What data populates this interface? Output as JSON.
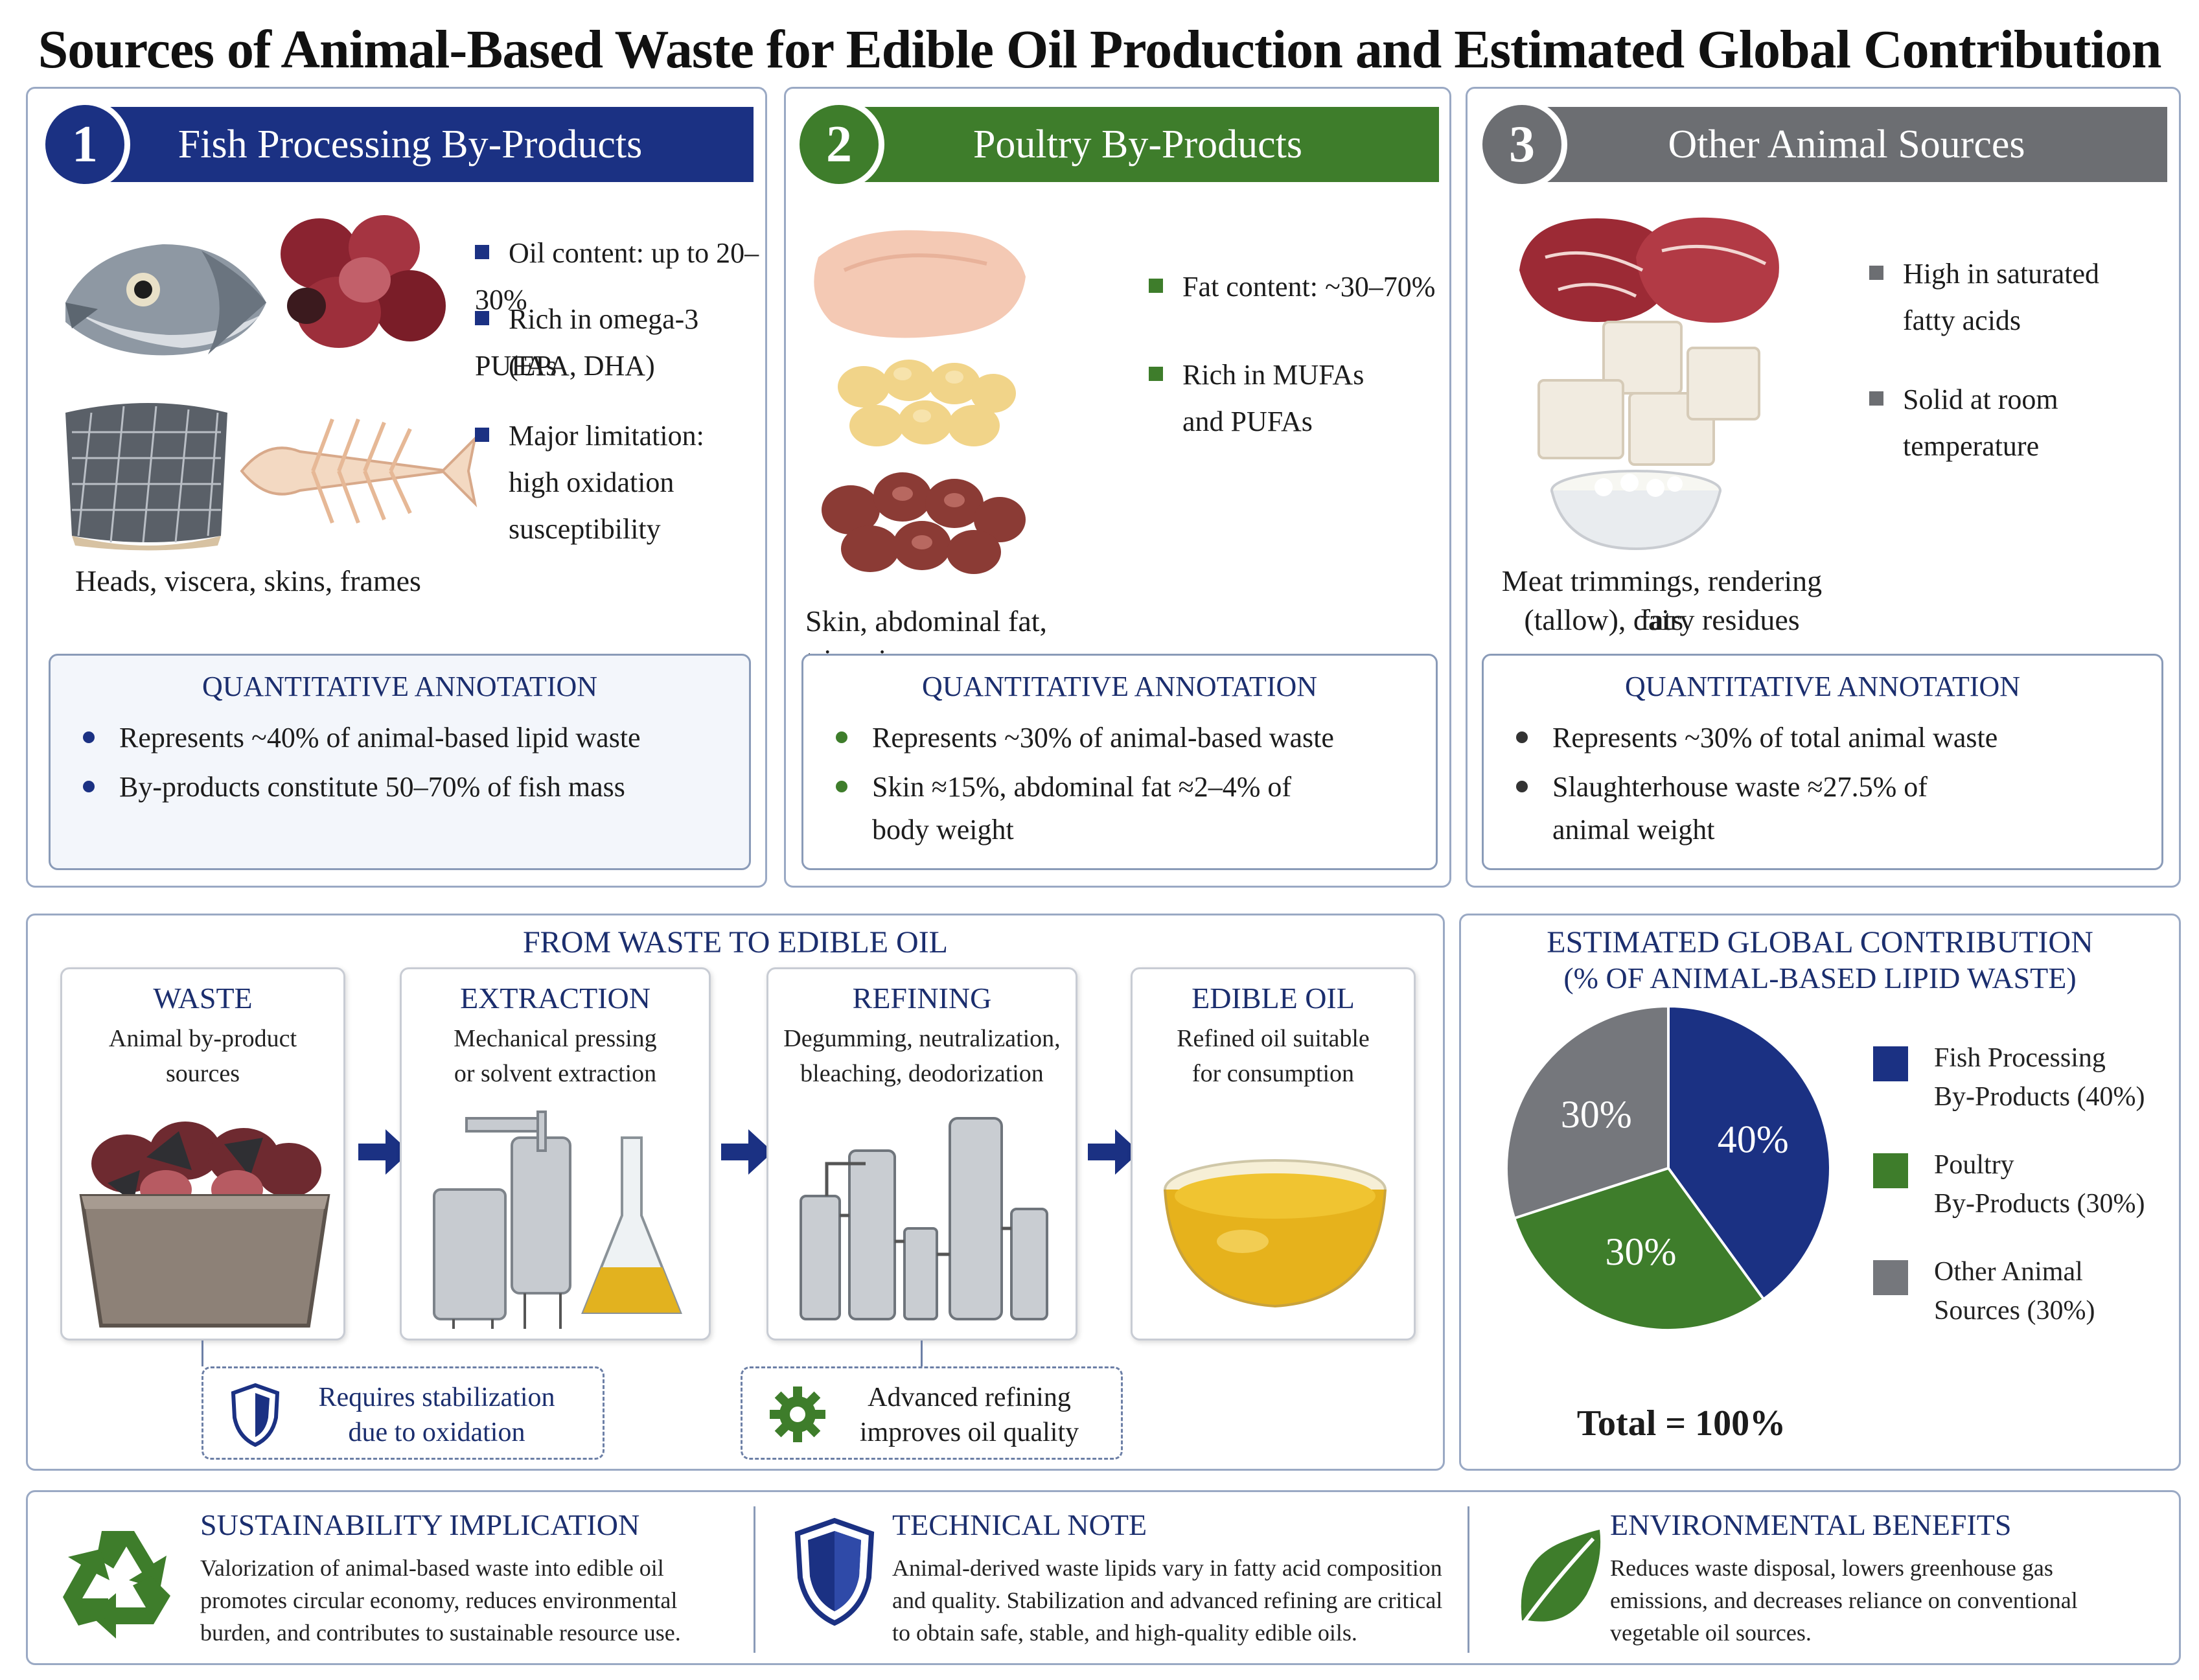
{
  "title": "Sources of Animal-Based Waste for Edible Oil Production and Estimated Global Contribution",
  "colors": {
    "blue": "#1b3183",
    "green": "#3e7d2b",
    "gray": "#6c6e72",
    "navy_text": "#1b2e6e"
  },
  "sections": [
    {
      "number": "1",
      "title": "Fish Processing By-Products",
      "bullets": [
        "Oil content: up to 20–30%",
        "Rich in omega-3 PUFAs",
        "(EPA, DHA)",
        "Major limitation:",
        "high oxidation susceptibility"
      ],
      "caption": "Heads, viscera, skins, frames",
      "qa_title": "QUANTITATIVE ANNOTATION",
      "qa_items": [
        "Represents ~40% of animal-based lipid waste",
        "By-products constitute 50–70% of fish mass"
      ]
    },
    {
      "number": "2",
      "title": "Poultry By-Products",
      "bullets": [
        "Fat content: ~30–70%",
        "Rich in MUFAs",
        "and PUFAs"
      ],
      "caption": "Skin, abdominal fat, trimmings",
      "qa_title": "QUANTITATIVE ANNOTATION",
      "qa_items": [
        "Represents ~30% of animal-based waste",
        "Skin ≈15%, abdominal fat ≈2–4% of",
        "body weight"
      ]
    },
    {
      "number": "3",
      "title": "Other Animal Sources",
      "bullets": [
        "High in saturated",
        "fatty acids",
        "Solid at room",
        "temperature"
      ],
      "caption_lines": [
        "Meat trimmings, rendering fats",
        "(tallow), dairy residues"
      ],
      "qa_title": "QUANTITATIVE ANNOTATION",
      "qa_items": [
        "Represents ~30% of total animal waste",
        "Slaughterhouse waste ≈27.5% of",
        "animal weight"
      ]
    }
  ],
  "process": {
    "title": "FROM WASTE TO EDIBLE OIL",
    "steps": [
      {
        "title": "WASTE",
        "desc": [
          "Animal by-product",
          "sources"
        ]
      },
      {
        "title": "EXTRACTION",
        "desc": [
          "Mechanical pressing",
          "or solvent extraction"
        ]
      },
      {
        "title": "REFINING",
        "desc": [
          "Degumming, neutralization,",
          "bleaching, deodorization"
        ]
      },
      {
        "title": "EDIBLE OIL",
        "desc": [
          "Refined oil suitable",
          "for consumption"
        ]
      }
    ],
    "notes": [
      {
        "icon": "shield-icon",
        "lines": [
          "Requires stabilization",
          "due to oxidation"
        ]
      },
      {
        "icon": "gear-icon",
        "lines": [
          "Advanced refining",
          "improves oil quality"
        ]
      }
    ]
  },
  "chart_data": {
    "type": "pie",
    "title": "ESTIMATED GLOBAL CONTRIBUTION",
    "subtitle": "(% OF ANIMAL-BASED LIPID WASTE)",
    "categories": [
      "Fish Processing By-Products (40%)",
      "Poultry By-Products (30%)",
      "Other Animal Sources (30%)"
    ],
    "values": [
      40,
      30,
      30
    ],
    "data_labels": [
      "40%",
      "30%",
      "30%"
    ],
    "colors": [
      "#1b3183",
      "#3e7d2b",
      "#75777c"
    ],
    "legend_lines": [
      [
        "Fish Processing",
        "By-Products (40%)"
      ],
      [
        "Poultry",
        "By-Products (30%)"
      ],
      [
        "Other Animal",
        "Sources (30%)"
      ]
    ],
    "legend_position": "right",
    "total_label": "Total = 100%"
  },
  "footer": [
    {
      "icon": "recycle-icon",
      "title": "SUSTAINABILITY IMPLICATION",
      "lines": [
        "Valorization of animal-based waste into edible oil",
        "promotes circular economy, reduces environmental",
        "burden, and contributes to sustainable resource use."
      ]
    },
    {
      "icon": "shield-icon",
      "title": "TECHNICAL NOTE",
      "lines": [
        "Animal-derived waste lipids vary in fatty acid composition",
        "and quality. Stabilization and advanced refining are critical",
        "to obtain safe, stable, and high-quality edible oils."
      ]
    },
    {
      "icon": "leaf-icon",
      "title": "ENVIRONMENTAL BENEFITS",
      "lines": [
        "Reduces waste disposal, lowers greenhouse gas",
        "emissions, and decreases reliance on conventional",
        "vegetable oil sources."
      ]
    }
  ]
}
